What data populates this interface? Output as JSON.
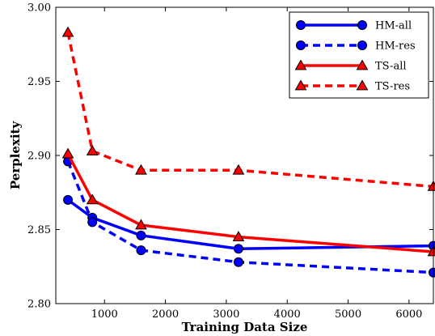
{
  "chart_data": {
    "type": "line",
    "xlabel": "Training Data Size",
    "ylabel": "Perplexity",
    "xlim": [
      200,
      6400
    ],
    "ylim": [
      2.8,
      3.0
    ],
    "xticks": [
      1000,
      2000,
      3000,
      4000,
      5000,
      6000
    ],
    "yticks": [
      2.8,
      2.85,
      2.9,
      2.95,
      3.0
    ],
    "ytick_labels": [
      "2.80",
      "2.85",
      "2.90",
      "2.95",
      "3.00"
    ],
    "x": [
      400,
      800,
      1600,
      3200,
      6400
    ],
    "grid": false,
    "legend_position": "top-right",
    "series": [
      {
        "name": "HM-all",
        "values": [
          2.87,
          2.858,
          2.846,
          2.837,
          2.839
        ],
        "color": "#0000ff",
        "dash": "solid",
        "marker": "circle"
      },
      {
        "name": "HM-res",
        "values": [
          2.896,
          2.855,
          2.836,
          2.828,
          2.821
        ],
        "color": "#0000ff",
        "dash": "dashed",
        "marker": "circle"
      },
      {
        "name": "TS-all",
        "values": [
          2.901,
          2.87,
          2.853,
          2.845,
          2.835
        ],
        "color": "#ff0000",
        "dash": "solid",
        "marker": "triangle"
      },
      {
        "name": "TS-res",
        "values": [
          2.983,
          2.903,
          2.89,
          2.89,
          2.879
        ],
        "color": "#ff0000",
        "dash": "dashed",
        "marker": "triangle"
      }
    ]
  }
}
